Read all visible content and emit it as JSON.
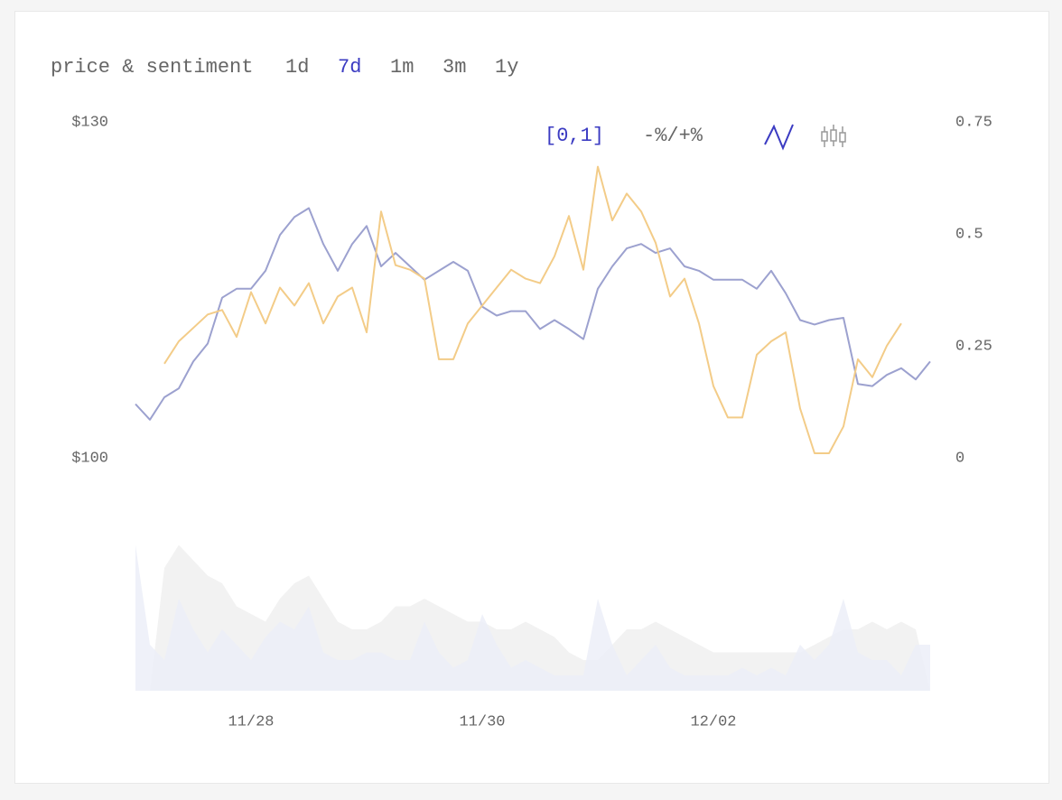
{
  "chart_data": {
    "type": "line",
    "title": "price & sentiment",
    "periods": [
      "1d",
      "7d",
      "1m",
      "3m",
      "1y"
    ],
    "selected_period": "7d",
    "controls": [
      "[0,1]",
      "-%/+%"
    ],
    "selected_control": "[0,1]",
    "categories": [
      null,
      null,
      null,
      null,
      null,
      null,
      null,
      null,
      "11/28",
      null,
      null,
      null,
      null,
      null,
      null,
      null,
      null,
      null,
      null,
      null,
      null,
      null,
      null,
      null,
      "11/30",
      null,
      null,
      null,
      null,
      null,
      null,
      null,
      null,
      null,
      null,
      null,
      null,
      null,
      null,
      null,
      "12/02",
      null,
      null,
      null,
      null,
      null,
      null,
      null,
      null,
      null,
      null,
      null,
      null,
      null,
      null,
      null
    ],
    "ylim": [
      100,
      130
    ],
    "yticks": [
      {
        "value": 100,
        "label": "$100"
      },
      {
        "value": 130,
        "label": "$130"
      }
    ],
    "y2lim": [
      0,
      0.75
    ],
    "y2ticks": [
      0,
      0.25,
      0.5,
      0.75
    ],
    "series": [
      {
        "color": "#9ca1cf",
        "values": [
          104.8,
          103.4,
          105.4,
          106.2,
          108.6,
          110.2,
          114.3,
          115.1,
          115.1,
          116.7,
          119.9,
          121.5,
          122.3,
          119.1,
          116.7,
          119.1,
          120.7,
          117.1,
          118.3,
          117.1,
          115.9,
          116.7,
          117.5,
          116.7,
          113.5,
          112.7,
          113.1,
          113.1,
          111.5,
          112.3,
          111.5,
          110.6,
          115.1,
          117.1,
          118.7,
          119.1,
          118.3,
          118.7,
          117.1,
          116.7,
          115.9,
          115.9,
          115.9,
          115.1,
          116.7,
          114.7,
          112.3,
          111.9,
          112.3,
          112.5,
          106.6,
          106.4,
          107.4,
          108.0,
          107.0,
          108.6
        ]
      },
      {
        "color": "#f3cc88",
        "axis": "y2",
        "values": [
          null,
          null,
          0.21,
          0.26,
          0.29,
          0.32,
          0.33,
          0.27,
          0.37,
          0.3,
          0.38,
          0.34,
          0.39,
          0.3,
          0.36,
          0.38,
          0.28,
          0.55,
          0.43,
          0.42,
          0.4,
          0.22,
          0.22,
          0.3,
          0.34,
          0.38,
          0.42,
          0.4,
          0.39,
          0.45,
          0.54,
          0.42,
          0.65,
          0.53,
          0.59,
          0.55,
          0.48,
          0.36,
          0.4,
          0.3,
          0.16,
          0.09,
          0.09,
          0.23,
          0.26,
          0.28,
          0.11,
          0.01,
          0.01,
          0.07,
          0.22,
          0.18,
          0.25,
          0.3,
          null,
          null
        ]
      }
    ],
    "volume": {
      "vlim": [
        0,
        100
      ],
      "series": [
        {
          "color": "#f0f0f0",
          "values": [
            0,
            0,
            80,
            95,
            85,
            75,
            70,
            55,
            50,
            45,
            60,
            70,
            75,
            60,
            45,
            40,
            40,
            45,
            55,
            55,
            60,
            55,
            50,
            45,
            45,
            40,
            40,
            45,
            40,
            35,
            25,
            20,
            20,
            30,
            40,
            40,
            45,
            40,
            35,
            30,
            25,
            25,
            25,
            25,
            25,
            25,
            25,
            30,
            35,
            40,
            40,
            45,
            40,
            45,
            40,
            0
          ]
        },
        {
          "color": "#eceef8",
          "values": [
            95,
            30,
            20,
            60,
            40,
            25,
            40,
            30,
            20,
            35,
            45,
            40,
            55,
            25,
            20,
            20,
            25,
            25,
            20,
            20,
            45,
            25,
            15,
            20,
            50,
            30,
            15,
            20,
            15,
            10,
            10,
            10,
            60,
            30,
            10,
            20,
            30,
            15,
            10,
            10,
            10,
            10,
            15,
            10,
            15,
            10,
            30,
            20,
            30,
            60,
            25,
            20,
            20,
            10,
            30,
            30
          ]
        }
      ]
    }
  }
}
